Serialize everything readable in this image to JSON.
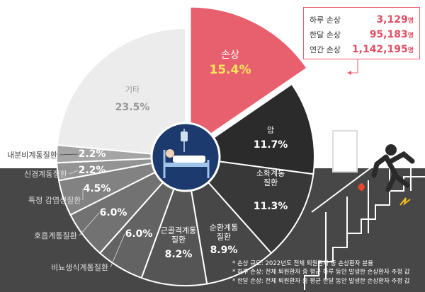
{
  "chart_data": {
    "type": "pie",
    "categories": [
      "손상",
      "암",
      "소화계통\n질환",
      "순환계통\n질환",
      "근골격계통\n질환",
      "비뇨생식계통질환",
      "호흡계통질환",
      "특정 감염성질환",
      "신경계통질환",
      "내분비계통질환",
      "기타"
    ],
    "values": [
      15.4,
      11.7,
      11.3,
      8.9,
      8.2,
      6.0,
      6.0,
      4.5,
      2.2,
      2.2,
      23.5
    ],
    "value_labels": [
      "15.4%",
      "11.7%",
      "11.3%",
      "8.9%",
      "8.2%",
      "6.0%",
      "6.0%",
      "4.5%",
      "2.2%",
      "2.2%",
      "23.5%"
    ],
    "colors": [
      "#e8606e",
      "#2b2b2b",
      "#383838",
      "#474747",
      "#555555",
      "#636363",
      "#727272",
      "#828282",
      "#939393",
      "#a5a5a5",
      "#ececec"
    ],
    "highlight": 0
  },
  "summary": [
    {
      "label": "하루 손상",
      "value": "3,129",
      "unit": "명"
    },
    {
      "label": "한달 손상",
      "value": "95,183",
      "unit": "명"
    },
    {
      "label": "연간 손상",
      "value": "1,142,195",
      "unit": "명"
    }
  ],
  "notes": [
    "* 손상 규모: 2022년도 전체 퇴원환자 중 손상환자 분율",
    "* 하루 손상: 전체 퇴원환자 중 평균 하루 동안 발생한 손상환자 추정 값",
    "* 한달 손상: 전체 퇴원환자 중 평균 한달 동안 발생한 손상환자 추정 값"
  ]
}
